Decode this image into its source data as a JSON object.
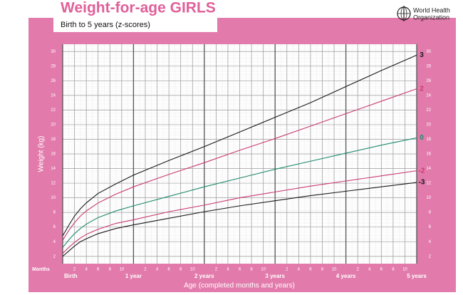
{
  "chart_data": {
    "type": "line",
    "title": "Weight-for-age GIRLS",
    "subtitle": "Birth to 5 years (z-scores)",
    "organization": [
      "World Health",
      "Organization"
    ],
    "x_unit_label": "Months",
    "xlabel": "Age (completed months and years)",
    "ylabel": "Weight (kg)",
    "x": [
      0,
      1,
      2,
      3,
      4,
      6,
      9,
      12,
      18,
      24,
      30,
      36,
      42,
      48,
      54,
      60
    ],
    "series": [
      {
        "name": "3",
        "color": "#1a1a1a",
        "values": [
          4.8,
          6.2,
          7.5,
          8.5,
          9.3,
          10.6,
          11.9,
          13.1,
          15.1,
          17.0,
          19.0,
          21.0,
          23.0,
          25.2,
          27.4,
          29.5
        ]
      },
      {
        "name": "2",
        "color": "#c83a72",
        "values": [
          4.2,
          5.5,
          6.6,
          7.5,
          8.2,
          9.3,
          10.5,
          11.5,
          13.2,
          14.8,
          16.5,
          18.1,
          19.8,
          21.5,
          23.2,
          24.9
        ]
      },
      {
        "name": "0",
        "color": "#1f8a6e",
        "values": [
          3.2,
          4.2,
          5.1,
          5.8,
          6.4,
          7.3,
          8.2,
          8.9,
          10.2,
          11.5,
          12.7,
          13.9,
          15.0,
          16.1,
          17.2,
          18.2
        ]
      },
      {
        "name": "-2",
        "color": "#c83a72",
        "values": [
          2.4,
          3.2,
          3.9,
          4.5,
          5.0,
          5.7,
          6.5,
          7.0,
          8.1,
          9.0,
          10.0,
          10.8,
          11.6,
          12.3,
          13.0,
          13.7
        ]
      },
      {
        "name": "-3",
        "color": "#1a1a1a",
        "values": [
          2.0,
          2.7,
          3.4,
          4.0,
          4.4,
          5.1,
          5.8,
          6.3,
          7.2,
          8.1,
          8.9,
          9.6,
          10.3,
          10.9,
          11.5,
          12.1
        ]
      }
    ],
    "xlim": [
      0,
      60
    ],
    "xticks": [
      {
        "value": 0,
        "label": "Birth"
      },
      2,
      4,
      6,
      8,
      10,
      {
        "value": 12,
        "label": "1 year"
      },
      {
        "value": 14,
        "label": "2"
      },
      {
        "value": 16,
        "label": "4"
      },
      {
        "value": 18,
        "label": "6"
      },
      {
        "value": 20,
        "label": "8"
      },
      {
        "value": 22,
        "label": "10"
      },
      {
        "value": 24,
        "label": "2 years"
      },
      {
        "value": 26,
        "label": "2"
      },
      {
        "value": 28,
        "label": "4"
      },
      {
        "value": 30,
        "label": "6"
      },
      {
        "value": 32,
        "label": "8"
      },
      {
        "value": 34,
        "label": "10"
      },
      {
        "value": 36,
        "label": "3 years"
      },
      {
        "value": 38,
        "label": "2"
      },
      {
        "value": 40,
        "label": "4"
      },
      {
        "value": 42,
        "label": "6"
      },
      {
        "value": 44,
        "label": "8"
      },
      {
        "value": 46,
        "label": "10"
      },
      {
        "value": 48,
        "label": "4 years"
      },
      {
        "value": 50,
        "label": "2"
      },
      {
        "value": 52,
        "label": "4"
      },
      {
        "value": 54,
        "label": "6"
      },
      {
        "value": 56,
        "label": "8"
      },
      {
        "value": 58,
        "label": "10"
      },
      {
        "value": 60,
        "label": "5 years"
      }
    ],
    "ylim": [
      1,
      31
    ],
    "yticks": [
      2,
      4,
      6,
      8,
      10,
      12,
      14,
      16,
      18,
      20,
      22,
      24,
      26,
      28,
      30
    ],
    "grid": true,
    "frame_color": "#e27bab"
  }
}
